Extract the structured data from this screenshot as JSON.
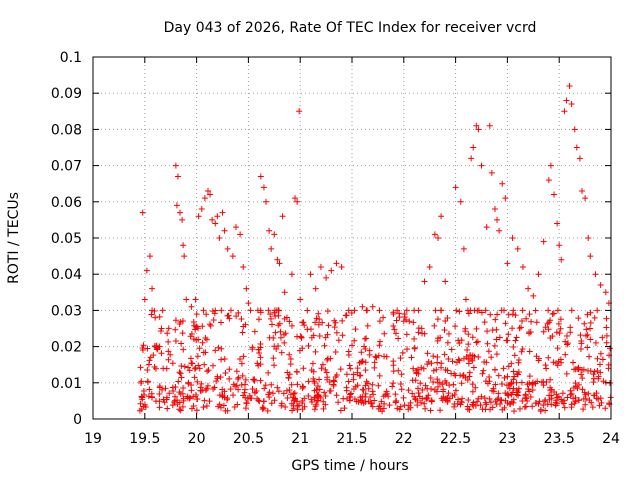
{
  "chart_data": {
    "type": "scatter",
    "title": "Day 043 of 2026, Rate Of TEC Index for receiver vcrd",
    "xlabel": "GPS time / hours",
    "ylabel": "ROTI / TECUs",
    "xlim": [
      19,
      24
    ],
    "ylim": [
      0,
      0.1
    ],
    "x_ticks": [
      "19",
      "19.5",
      "20",
      "20.5",
      "21",
      "21.5",
      "22",
      "22.5",
      "23",
      "23.5",
      "24"
    ],
    "y_ticks": [
      "0",
      "0.01",
      "0.02",
      "0.03",
      "0.04",
      "0.05",
      "0.06",
      "0.07",
      "0.08",
      "0.09",
      "0.1"
    ],
    "grid": true,
    "marker": "+",
    "color": "#ff0000",
    "series": [
      {
        "name": "ROTI",
        "points": [
          [
            19.48,
            0.057
          ],
          [
            19.5,
            0.033
          ],
          [
            19.52,
            0.041
          ],
          [
            19.55,
            0.045
          ],
          [
            19.57,
            0.036
          ],
          [
            19.6,
            0.028
          ],
          [
            19.8,
            0.07
          ],
          [
            19.82,
            0.067
          ],
          [
            19.81,
            0.059
          ],
          [
            19.84,
            0.057
          ],
          [
            19.86,
            0.055
          ],
          [
            19.87,
            0.048
          ],
          [
            19.88,
            0.045
          ],
          [
            19.9,
            0.033
          ],
          [
            19.95,
            0.031
          ],
          [
            19.99,
            0.033
          ],
          [
            20.02,
            0.056
          ],
          [
            20.05,
            0.058
          ],
          [
            20.08,
            0.061
          ],
          [
            20.11,
            0.063
          ],
          [
            20.13,
            0.062
          ],
          [
            20.15,
            0.055
          ],
          [
            20.18,
            0.054
          ],
          [
            20.2,
            0.056
          ],
          [
            20.22,
            0.05
          ],
          [
            20.25,
            0.057
          ],
          [
            20.27,
            0.052
          ],
          [
            20.3,
            0.047
          ],
          [
            20.35,
            0.045
          ],
          [
            20.38,
            0.053
          ],
          [
            20.42,
            0.051
          ],
          [
            20.45,
            0.042
          ],
          [
            20.48,
            0.036
          ],
          [
            20.5,
            0.032
          ],
          [
            20.62,
            0.067
          ],
          [
            20.65,
            0.064
          ],
          [
            20.67,
            0.06
          ],
          [
            20.7,
            0.052
          ],
          [
            20.72,
            0.047
          ],
          [
            20.75,
            0.051
          ],
          [
            20.78,
            0.044
          ],
          [
            20.8,
            0.043
          ],
          [
            20.83,
            0.056
          ],
          [
            20.85,
            0.035
          ],
          [
            20.95,
            0.061
          ],
          [
            20.97,
            0.06
          ],
          [
            20.99,
            0.085
          ],
          [
            20.92,
            0.04
          ],
          [
            21.0,
            0.033
          ],
          [
            21.1,
            0.04
          ],
          [
            21.15,
            0.036
          ],
          [
            21.2,
            0.042
          ],
          [
            21.25,
            0.039
          ],
          [
            21.3,
            0.041
          ],
          [
            21.35,
            0.043
          ],
          [
            21.4,
            0.042
          ],
          [
            21.6,
            0.031
          ],
          [
            21.7,
            0.031
          ],
          [
            21.8,
            0.028
          ],
          [
            21.9,
            0.029
          ],
          [
            22.0,
            0.027
          ],
          [
            22.1,
            0.03
          ],
          [
            22.2,
            0.038
          ],
          [
            22.25,
            0.042
          ],
          [
            22.3,
            0.051
          ],
          [
            22.33,
            0.05
          ],
          [
            22.36,
            0.056
          ],
          [
            22.4,
            0.038
          ],
          [
            22.5,
            0.064
          ],
          [
            22.55,
            0.06
          ],
          [
            22.58,
            0.047
          ],
          [
            22.6,
            0.033
          ],
          [
            22.65,
            0.072
          ],
          [
            22.67,
            0.075
          ],
          [
            22.7,
            0.081
          ],
          [
            22.72,
            0.08
          ],
          [
            22.75,
            0.07
          ],
          [
            22.8,
            0.053
          ],
          [
            22.83,
            0.081
          ],
          [
            22.85,
            0.068
          ],
          [
            22.88,
            0.058
          ],
          [
            22.9,
            0.055
          ],
          [
            22.92,
            0.052
          ],
          [
            22.95,
            0.065
          ],
          [
            22.98,
            0.061
          ],
          [
            23.0,
            0.043
          ],
          [
            23.05,
            0.05
          ],
          [
            23.1,
            0.047
          ],
          [
            23.15,
            0.042
          ],
          [
            23.2,
            0.036
          ],
          [
            23.25,
            0.034
          ],
          [
            23.3,
            0.04
          ],
          [
            23.35,
            0.049
          ],
          [
            23.4,
            0.066
          ],
          [
            23.42,
            0.07
          ],
          [
            23.45,
            0.062
          ],
          [
            23.48,
            0.054
          ],
          [
            23.5,
            0.048
          ],
          [
            23.52,
            0.044
          ],
          [
            23.55,
            0.085
          ],
          [
            23.57,
            0.088
          ],
          [
            23.6,
            0.092
          ],
          [
            23.62,
            0.087
          ],
          [
            23.65,
            0.08
          ],
          [
            23.67,
            0.075
          ],
          [
            23.7,
            0.072
          ],
          [
            23.72,
            0.063
          ],
          [
            23.75,
            0.061
          ],
          [
            23.78,
            0.05
          ],
          [
            23.8,
            0.045
          ],
          [
            23.85,
            0.04
          ],
          [
            23.9,
            0.037
          ],
          [
            23.95,
            0.035
          ],
          [
            23.98,
            0.032
          ]
        ],
        "noise_band": {
          "x_range": [
            19.45,
            24
          ],
          "y_range": [
            0.002,
            0.03
          ],
          "count": 1100
        }
      }
    ]
  }
}
